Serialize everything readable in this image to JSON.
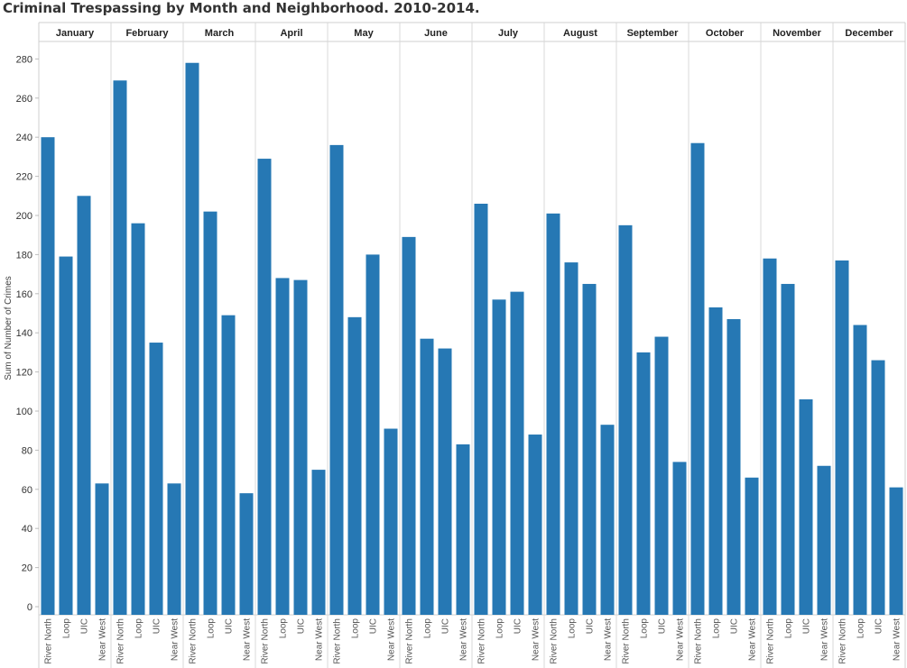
{
  "chart_data": {
    "type": "bar",
    "title": "Criminal Trespassing by Month and Neighborhood. 2010-2014.",
    "ylabel": "Sum of Number of Crimes",
    "xlabel": "",
    "months": [
      "January",
      "February",
      "March",
      "April",
      "May",
      "June",
      "July",
      "August",
      "September",
      "October",
      "November",
      "December"
    ],
    "categories": [
      "River North",
      "Loop",
      "UIC",
      "Near West"
    ],
    "ylim": [
      0,
      290
    ],
    "yticks": [
      0,
      20,
      40,
      60,
      80,
      100,
      120,
      140,
      160,
      180,
      200,
      220,
      240,
      260,
      280
    ],
    "bar_color": "#2678b4",
    "grid": false,
    "values": [
      [
        240,
        179,
        210,
        63
      ],
      [
        269,
        196,
        135,
        63
      ],
      [
        278,
        202,
        149,
        58
      ],
      [
        229,
        168,
        167,
        70
      ],
      [
        236,
        148,
        180,
        91
      ],
      [
        189,
        137,
        132,
        83
      ],
      [
        206,
        157,
        161,
        88
      ],
      [
        201,
        176,
        165,
        93
      ],
      [
        195,
        130,
        138,
        74
      ],
      [
        237,
        153,
        147,
        66
      ],
      [
        178,
        165,
        106,
        72
      ],
      [
        177,
        144,
        126,
        61
      ]
    ]
  }
}
